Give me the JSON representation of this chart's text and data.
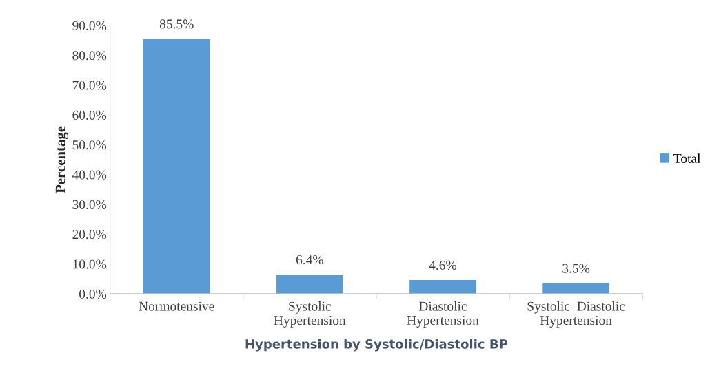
{
  "chart_data": {
    "type": "bar",
    "xlabel": "Hypertension by Systolic/Diastolic BP",
    "ylabel": "Percentage",
    "categories": [
      "Normotensive",
      "Systolic\nHypertension",
      "Diastolic\nHypertension",
      "Systolic_Diastolic\nHypertension"
    ],
    "series": [
      {
        "name": "Total",
        "color": "#5b9bd5",
        "values": [
          85.5,
          6.4,
          4.6,
          3.5
        ],
        "value_labels": [
          "85.5%",
          "6.4%",
          "4.6%",
          "3.5%"
        ]
      }
    ],
    "ylim": [
      0,
      90
    ],
    "yticks": [
      {
        "value": 0,
        "label": "0.0%"
      },
      {
        "value": 10,
        "label": "10.0%"
      },
      {
        "value": 20,
        "label": "20.0%"
      },
      {
        "value": 30,
        "label": "30.0%"
      },
      {
        "value": 40,
        "label": "40.0%"
      },
      {
        "value": 50,
        "label": "50.0%"
      },
      {
        "value": 60,
        "label": "60.0%"
      },
      {
        "value": 70,
        "label": "70.0%"
      },
      {
        "value": 80,
        "label": "80.0%"
      },
      {
        "value": 90,
        "label": "90.0%"
      }
    ],
    "grid": false,
    "legend": "right"
  }
}
